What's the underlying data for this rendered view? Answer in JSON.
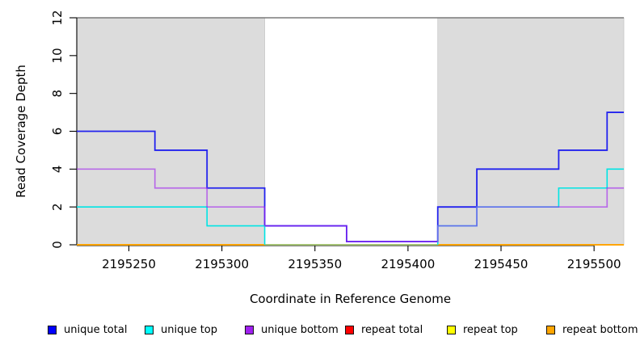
{
  "figure": {
    "background": "#ffffff"
  },
  "chart_data": {
    "type": "line",
    "subtype": "step",
    "title": "",
    "xlabel": "Coordinate in Reference Genome",
    "ylabel": "Read Coverage Depth",
    "x_range": [
      2195222,
      2195516
    ],
    "y_range": [
      0,
      12
    ],
    "x_ticks": [
      2195250,
      2195300,
      2195350,
      2195400,
      2195450,
      2195500
    ],
    "y_ticks": [
      0,
      2,
      4,
      6,
      8,
      10,
      12
    ],
    "grid": false,
    "legend_position": "bottom",
    "top_border_value": 12,
    "shade_color": "#dcdcdc",
    "shaded_regions": [
      {
        "start": 2195222,
        "end": 2195323
      },
      {
        "start": 2195416,
        "end": 2195516
      }
    ],
    "series": [
      {
        "name": "unique total",
        "color": "#0000FF",
        "draw_color": "#2323ee",
        "width": 1.8,
        "z": 5,
        "lift_zero": 0.17,
        "in_legend": true,
        "paths": [
          {
            "points": [
              [
                2195222,
                6
              ],
              [
                2195264,
                5
              ],
              [
                2195292,
                3
              ],
              [
                2195323,
                1
              ],
              [
                2195367,
                0
              ],
              [
                2195416,
                2
              ],
              [
                2195437,
                4
              ],
              [
                2195481,
                5
              ],
              [
                2195507,
                7
              ]
            ],
            "end": 2195516
          }
        ]
      },
      {
        "name": "unique top",
        "color": "#00FFFF",
        "draw_color": "#00e4e4",
        "width": 1.6,
        "z": 6,
        "lift_zero": 0,
        "in_legend": true,
        "paths": [
          {
            "points": [
              [
                2195222,
                2
              ],
              [
                2195292,
                1
              ],
              [
                2195323,
                0
              ]
            ],
            "end": 2195323
          },
          {
            "points": [
              [
                2195416,
                0
              ],
              [
                2195416,
                1
              ],
              [
                2195437,
                2
              ],
              [
                2195481,
                3
              ],
              [
                2195507,
                4
              ]
            ],
            "end": 2195516
          }
        ]
      },
      {
        "name": "unique bottom",
        "color": "#A020F0",
        "draw_color": "#a020f0",
        "opacity": 0.6,
        "width": 1.7,
        "z": 7,
        "lift_zero": 0.17,
        "in_legend": true,
        "paths": [
          {
            "points": [
              [
                2195222,
                4
              ],
              [
                2195264,
                3
              ],
              [
                2195292,
                2
              ],
              [
                2195323,
                1
              ],
              [
                2195367,
                0
              ],
              [
                2195416,
                1
              ],
              [
                2195437,
                2
              ],
              [
                2195507,
                3
              ]
            ],
            "end": 2195516
          }
        ]
      },
      {
        "name": "repeat total",
        "color": "#FF0000",
        "draw_color": "#ff0000",
        "width": 1.5,
        "z": 1,
        "lift_zero": 0,
        "in_legend": true,
        "paths": [
          {
            "points": [
              [
                2195222,
                0
              ]
            ],
            "end": 2195516
          }
        ]
      },
      {
        "name": "repeat top",
        "color": "#FFFF00",
        "draw_color": "#ffff00",
        "width": 1.5,
        "z": 2,
        "lift_zero": 0,
        "in_legend": true,
        "paths": [
          {
            "points": [
              [
                2195222,
                0
              ]
            ],
            "end": 2195516
          }
        ]
      },
      {
        "name": "repeat bottom",
        "color": "#FFA500",
        "draw_color": "#ffa200",
        "width": 1.8,
        "z": 4,
        "lift_zero": 0,
        "in_legend": true,
        "paths": [
          {
            "points": [
              [
                2195222,
                0
              ]
            ],
            "end": 2195323
          },
          {
            "points": [
              [
                2195416,
                0
              ]
            ],
            "end": 2195516
          }
        ]
      },
      {
        "name": "unique-top repeat-top overlap",
        "color": "#8bc88b",
        "draw_color": "#8bc88b",
        "width": 1.5,
        "z": 3,
        "lift_zero": 0,
        "in_legend": false,
        "paths": [
          {
            "points": [
              [
                2195323,
                0
              ]
            ],
            "end": 2195416
          }
        ]
      }
    ]
  },
  "legend": {
    "items": [
      {
        "label": "unique total",
        "color": "#0000FF"
      },
      {
        "label": "unique top",
        "color": "#00FFFF"
      },
      {
        "label": "unique bottom",
        "color": "#A020F0"
      },
      {
        "label": "repeat total",
        "color": "#FF0000"
      },
      {
        "label": "repeat top",
        "color": "#FFFF00"
      },
      {
        "label": "repeat bottom",
        "color": "#FFA500"
      }
    ]
  }
}
